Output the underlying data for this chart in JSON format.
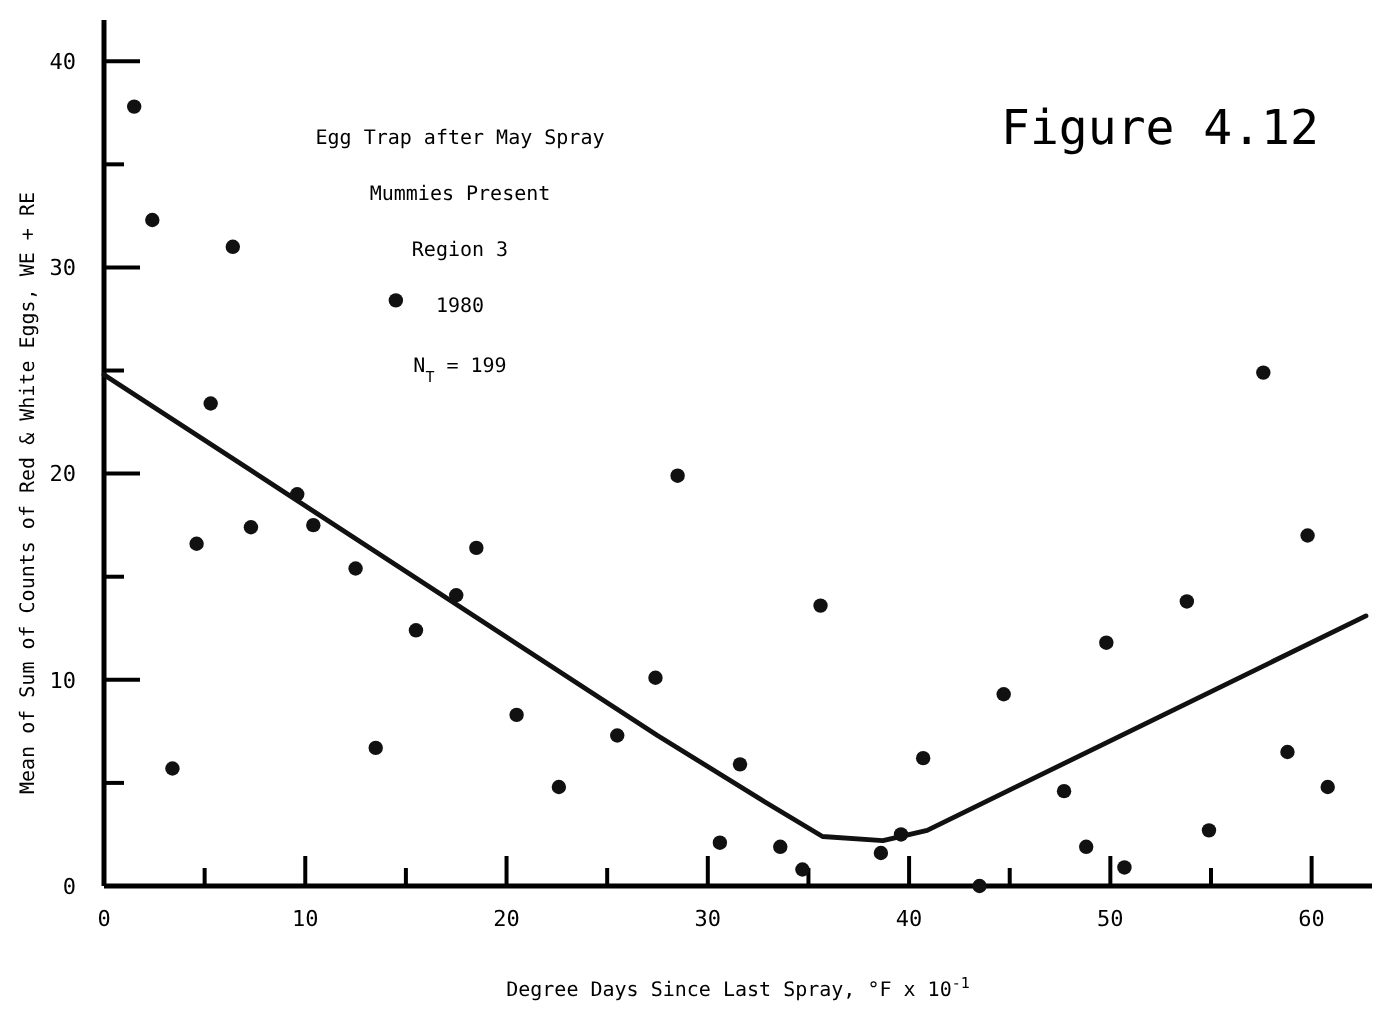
{
  "chart_data": {
    "type": "scatter",
    "xlabel": "Degree Days Since Last Spray, °F x 10$^{-1}$",
    "ylabel": "Mean of Sum of Counts of Red & White Eggs, WE + RE",
    "annotations": [
      "Egg Trap after May Spray",
      "Mummies Present",
      "Region 3",
      "1980",
      "N$_{T}$ = 199",
      "Figure 4.12"
    ],
    "xlim": [
      0,
      63
    ],
    "ylim": [
      0,
      42
    ],
    "xticks": [
      0,
      {
        "value": 5,
        "label": null
      },
      10,
      {
        "value": 15,
        "label": null
      },
      20,
      {
        "value": 25,
        "label": null
      },
      30,
      {
        "value": 35,
        "label": null
      },
      40,
      {
        "value": 45,
        "label": null
      },
      50,
      {
        "value": 55,
        "label": null
      },
      60
    ],
    "yticks": [
      0,
      {
        "value": 5,
        "label": null
      },
      10,
      {
        "value": 15,
        "label": null
      },
      20,
      {
        "value": 25,
        "label": null
      },
      30,
      {
        "value": 35,
        "label": null
      },
      40
    ],
    "grid": false,
    "marker": "circle",
    "series": [
      {
        "color": "#111111",
        "x": [
          1.5,
          2.4,
          3.4,
          4.6,
          5.3,
          6.4,
          7.3,
          9.6,
          10.4,
          12.5,
          13.5,
          14.5,
          15.5,
          17.5,
          18.5,
          20.5,
          22.6,
          25.5,
          27.4,
          28.5,
          30.6,
          31.6,
          33.6,
          34.7,
          35.6,
          38.6,
          39.6,
          40.7,
          43.5,
          44.7,
          47.7,
          48.8,
          49.8,
          50.7,
          53.8,
          54.9,
          57.6,
          58.8,
          59.8,
          60.8
        ],
        "values": [
          37.8,
          32.3,
          5.7,
          16.6,
          23.4,
          31.0,
          17.4,
          19.0,
          17.5,
          15.4,
          6.7,
          28.4,
          12.4,
          14.1,
          16.4,
          8.3,
          4.8,
          7.3,
          10.1,
          19.9,
          2.1,
          5.9,
          1.9,
          0.8,
          13.6,
          1.6,
          2.5,
          6.2,
          0,
          9.3,
          4.6,
          1.9,
          11.8,
          0.9,
          13.8,
          2.7,
          24.9,
          6.5,
          17.0,
          4.8
        ]
      },
      {
        "type": "line",
        "color": "#111111",
        "marker": "none",
        "line_style": "solid",
        "x": [
          0,
          27.5,
          32.8,
          35.7,
          38.7,
          40.9,
          62.7
        ],
        "values": [
          24.8,
          7.3,
          4.1,
          2.4,
          2.2,
          2.7,
          13.1
        ]
      }
    ]
  }
}
